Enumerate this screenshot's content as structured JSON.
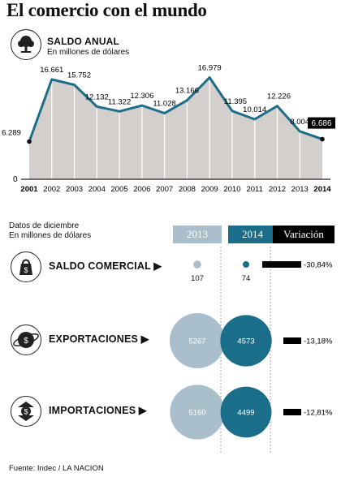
{
  "title": "El comercio con el mundo",
  "saldo_anual": {
    "header": "SALDO ANUAL",
    "subheader": "En millones de dólares",
    "zero_label": "0"
  },
  "chart_data": {
    "type": "area",
    "title": "SALDO ANUAL",
    "subtitle": "En millones de dólares",
    "categories": [
      "2001",
      "2002",
      "2003",
      "2004",
      "2005",
      "2006",
      "2007",
      "2008",
      "2009",
      "2010",
      "2011",
      "2012",
      "2013",
      "2014"
    ],
    "values": [
      6289,
      16661,
      15752,
      12132,
      11322,
      12306,
      11028,
      13166,
      16979,
      11395,
      10014,
      12226,
      8004,
      6686
    ],
    "value_labels": [
      "6.289",
      "16.661",
      "15.752",
      "12.132",
      "11.322",
      "12.306",
      "11.028",
      "13.166",
      "16.979",
      "11.395",
      "10.014",
      "12.226",
      "8.004",
      "6.686"
    ],
    "bold_categories": [
      "2001",
      "2014"
    ],
    "ylim": [
      0,
      18000
    ],
    "grid": "vertical",
    "colors": {
      "fill": "#d3cfcc",
      "line": "#1f6e89",
      "grid": "#ffffff",
      "axis": "#222222"
    }
  },
  "comparison": {
    "intro_line1": "Datos de diciembre",
    "intro_line2": "En millones de dólares",
    "col_2013": "2013",
    "col_2014": "2014",
    "col_var": "Variación",
    "colors": {
      "c2013": "#a9bfcc",
      "c2014": "#1a6e8a",
      "var": "#000000"
    },
    "rows": [
      {
        "label": "SALDO COMERCIAL",
        "v2013": 107,
        "v2013_label": "107",
        "v2014": 74,
        "v2014_label": "74",
        "variation": -30.84,
        "variation_label": "-30,84%"
      },
      {
        "label": "EXPORTACIONES",
        "v2013": 5267,
        "v2013_label": "5267",
        "v2014": 4573,
        "v2014_label": "4573",
        "variation": -13.18,
        "variation_label": "-13,18%"
      },
      {
        "label": "IMPORTACIONES",
        "v2013": 5160,
        "v2013_label": "5160",
        "v2014": 4499,
        "v2014_label": "4499",
        "variation": -12.81,
        "variation_label": "-12,81%"
      }
    ],
    "icons": [
      "bag-icon",
      "globe-icon",
      "arrows-icon"
    ]
  },
  "source": "Fuente: Indec / LA NACION"
}
